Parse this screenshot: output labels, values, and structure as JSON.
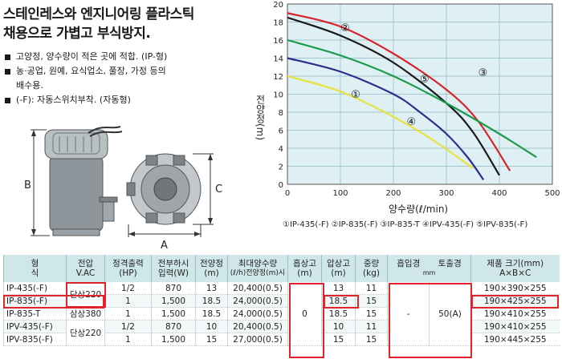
{
  "heading": {
    "line1": "스테인레스와 엔지니어링 플라스틱",
    "line2": "채용으로 가볍고 부식방지."
  },
  "bullets": [
    {
      "text": "고양정, 양수량이 적은 곳에 적합. (IP-형)",
      "cont": ""
    },
    {
      "text": "농·공업, 원예, 요식업소, 풀장, 가정 등의",
      "cont": "배수용."
    },
    {
      "text": "(-F): 자동스위치부착. (자동형)",
      "cont": ""
    }
  ],
  "diagram": {
    "label_a": "A",
    "label_b": "B",
    "label_c": "C"
  },
  "chart_data": {
    "type": "line",
    "ylabel": "전양정(m)",
    "xlabel": "양수량(ℓ/min)",
    "xlim": [
      0,
      500
    ],
    "ylim": [
      0,
      20
    ],
    "xticks": [
      "0",
      "100",
      "200",
      "300",
      "400",
      "500"
    ],
    "yticks": [
      "0",
      "2",
      "4",
      "6",
      "8",
      "10",
      "12",
      "14",
      "16",
      "18",
      "20"
    ],
    "grid": true,
    "series": [
      {
        "name": "①",
        "color": "#2e2e8a",
        "x": [
          0,
          100,
          200,
          250,
          300,
          340,
          370
        ],
        "y": [
          14,
          12.5,
          10,
          8,
          5.6,
          3,
          0.5
        ]
      },
      {
        "name": "②",
        "color": "#1a1a1a",
        "x": [
          0,
          100,
          200,
          300,
          350,
          400
        ],
        "y": [
          18.5,
          16.5,
          13.5,
          9,
          5.8,
          1
        ]
      },
      {
        "name": "③",
        "color": "#d8232a",
        "x": [
          0,
          100,
          200,
          300,
          360,
          420
        ],
        "y": [
          19,
          17.5,
          14.5,
          10.5,
          7,
          1.5
        ]
      },
      {
        "name": "④",
        "color": "#e8e23c",
        "x": [
          0,
          100,
          200,
          280,
          350
        ],
        "y": [
          12,
          10.3,
          7.5,
          4.7,
          1.8
        ]
      },
      {
        "name": "⑤",
        "color": "#1b9a4a",
        "x": [
          0,
          100,
          200,
          300,
          400,
          470
        ],
        "y": [
          16,
          14.3,
          12,
          9,
          5.6,
          3
        ]
      }
    ],
    "curve_labels": [
      "①",
      "②",
      "③",
      "④",
      "⑤"
    ]
  },
  "legend": {
    "text": "①IP-435(-F)  ②IP-835(-F)  ③IP-835-T  ④IPV-435(-F)  ⑤IPV-835(-F)"
  },
  "table": {
    "headers": [
      {
        "l1": "형",
        "l2": "식"
      },
      {
        "l1": "전압",
        "l2": "V.AC"
      },
      {
        "l1": "정격출력",
        "l2": "(HP)"
      },
      {
        "l1": "전부하시",
        "l2": "입력(W)"
      },
      {
        "l1": "전양정",
        "l2": "(m)"
      },
      {
        "l1": "최대양수량",
        "l2": "(ℓ/h)전양정(m)시"
      },
      {
        "l1": "흡상고",
        "l2": "(m)"
      },
      {
        "l1": "압상고",
        "l2": "(m)"
      },
      {
        "l1": "중량",
        "l2": "(kg)"
      },
      {
        "l1": "흡입경",
        "l2": ""
      },
      {
        "l1": "토출경",
        "l2": ""
      },
      {
        "l1": "제품 크기(mm)",
        "l2": "A×B×C"
      }
    ],
    "bore_unit": "mm",
    "rows": [
      {
        "model": "IP-435(-F)",
        "hp": "1/2",
        "watt": "870",
        "head": "13",
        "flow": "20,400(0.5)",
        "lift": "13",
        "weight": "11",
        "size": "190×390×255"
      },
      {
        "model": "IP-835(-F)",
        "hp": "1",
        "watt": "1,500",
        "head": "18.5",
        "flow": "24,000(0.5)",
        "lift": "18.5",
        "weight": "15",
        "size": "190×425×255"
      },
      {
        "model": "IP-835-T",
        "hp": "1",
        "watt": "1,500",
        "head": "18.5",
        "flow": "24,000(0.5)",
        "lift": "18.5",
        "weight": "15",
        "size": "190×410×255"
      },
      {
        "model": "IPV-435(-F)",
        "hp": "1/2",
        "watt": "870",
        "head": "10",
        "flow": "20,400(0.5)",
        "lift": "10",
        "weight": "11",
        "size": "190×410×255"
      },
      {
        "model": "IPV-835(-F)",
        "hp": "1",
        "watt": "1,500",
        "head": "15",
        "flow": "27,000(0.5)",
        "lift": "15",
        "weight": "15",
        "size": "190×445×255"
      }
    ],
    "voltage_single_1": "단상220",
    "voltage_three": "삼상380",
    "voltage_single_2": "단상220",
    "suction_height": "0",
    "suction_bore": "-",
    "discharge_bore": "50(A)"
  },
  "colors": {
    "header_bg": "#cfe7e9",
    "highlight": "#e0242c",
    "chart_bg": "#dff0f4"
  }
}
